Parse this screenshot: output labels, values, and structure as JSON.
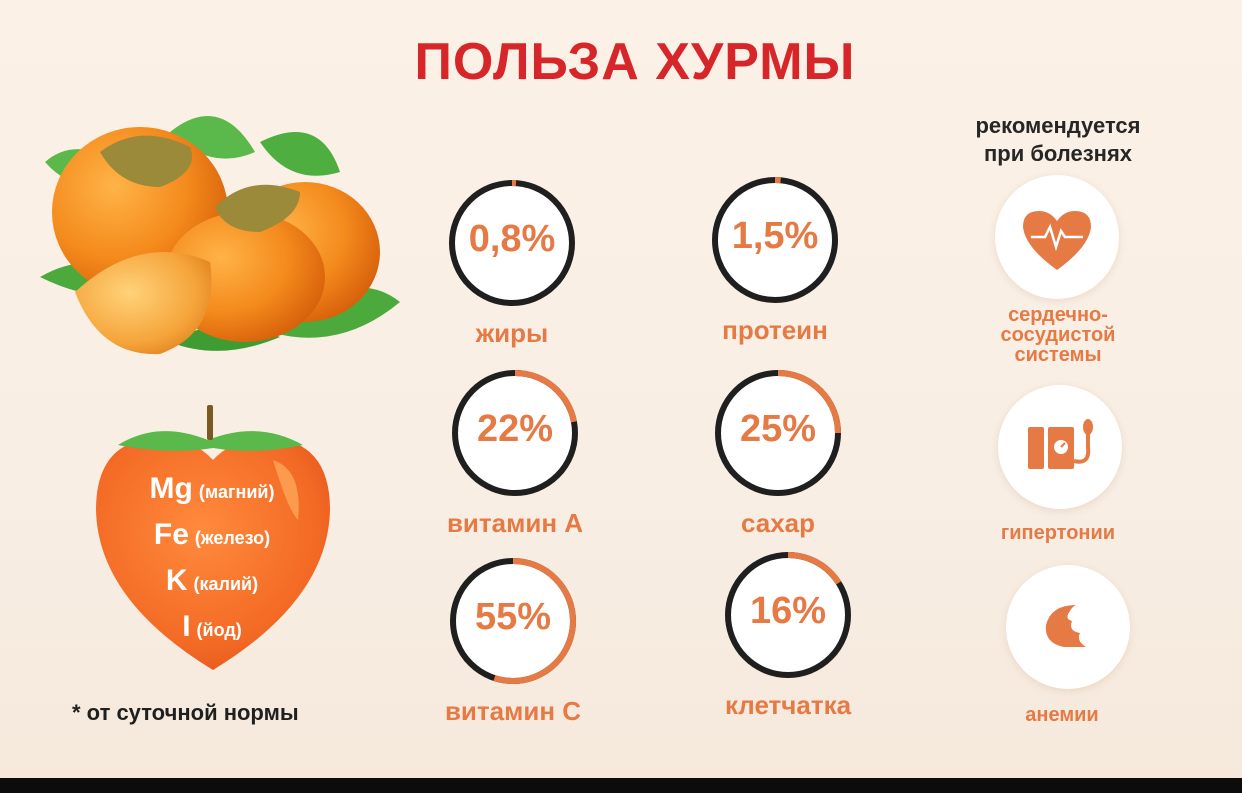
{
  "title": "ПОЛЬЗА ХУРМЫ",
  "colors": {
    "title": "#d7262a",
    "accent": "#e67a45",
    "ring_dark": "#1f1f1f"
  },
  "nutrients": [
    {
      "value": "0,8%",
      "label": "жиры",
      "percent": 0.8
    },
    {
      "value": "1,5%",
      "label": "протеин",
      "percent": 1.5
    },
    {
      "value": "22%",
      "label": "витамин А",
      "percent": 22
    },
    {
      "value": "25%",
      "label": "сахар",
      "percent": 25
    },
    {
      "value": "55%",
      "label": "витамин С",
      "percent": 55
    },
    {
      "value": "16%",
      "label": "клетчатка",
      "percent": 16
    }
  ],
  "minerals": [
    {
      "symbol": "Mg",
      "name": "(магний)"
    },
    {
      "symbol": "Fe",
      "name": "(железо)"
    },
    {
      "symbol": "K",
      "name": "(калий)"
    },
    {
      "symbol": "I",
      "name": "(йод)"
    }
  ],
  "footnote": "* от суточной нормы",
  "recommended": {
    "title_line1": "рекомендуется",
    "title_line2": "при болезнях",
    "diseases": [
      {
        "icon": "heart-pulse-icon",
        "lines": [
          "сердечно-",
          "сосудистой",
          "системы"
        ]
      },
      {
        "icon": "blood-pressure-icon",
        "lines": [
          "гипертонии"
        ]
      },
      {
        "icon": "blood-drop-icon",
        "lines": [
          "анемии"
        ]
      }
    ]
  }
}
